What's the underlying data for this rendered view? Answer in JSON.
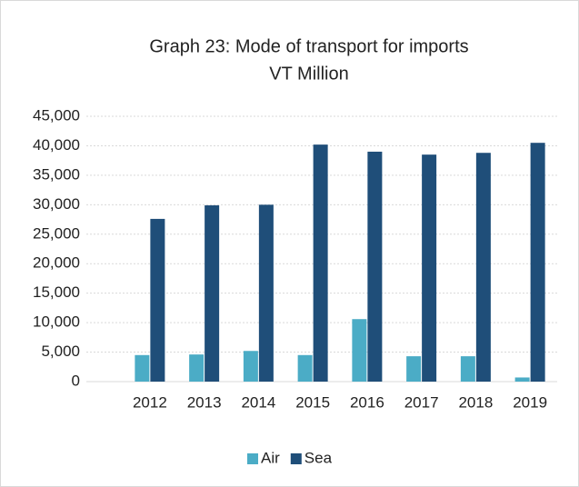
{
  "chart_data": {
    "type": "bar",
    "title": "Graph 23:  Mode of transport for imports",
    "subtitle": "VT Million",
    "categories": [
      "2012",
      "2013",
      "2014",
      "2015",
      "2016",
      "2017",
      "2018",
      "2019"
    ],
    "series": [
      {
        "name": "Air",
        "color": "#4bacc6",
        "values": [
          4500,
          4600,
          5200,
          4500,
          10600,
          4300,
          4300,
          700
        ]
      },
      {
        "name": "Sea",
        "color": "#1f4e79",
        "values": [
          27600,
          29900,
          30000,
          40200,
          39000,
          38500,
          38800,
          40500
        ]
      }
    ],
    "ylim": [
      0,
      45000
    ],
    "yticks": [
      0,
      {
        "value": 5000,
        "label": "5,000"
      },
      {
        "value": 10000,
        "label": "10,000"
      },
      {
        "value": 15000,
        "label": "15,000"
      },
      {
        "value": 20000,
        "label": "20,000"
      },
      {
        "value": 25000,
        "label": "25,000"
      },
      {
        "value": 30000,
        "label": "30,000"
      },
      {
        "value": 35000,
        "label": "35,000"
      },
      {
        "value": 40000,
        "label": "40,000"
      },
      {
        "value": 45000,
        "label": "45,000"
      }
    ],
    "grid": true,
    "legend": "bottom"
  }
}
